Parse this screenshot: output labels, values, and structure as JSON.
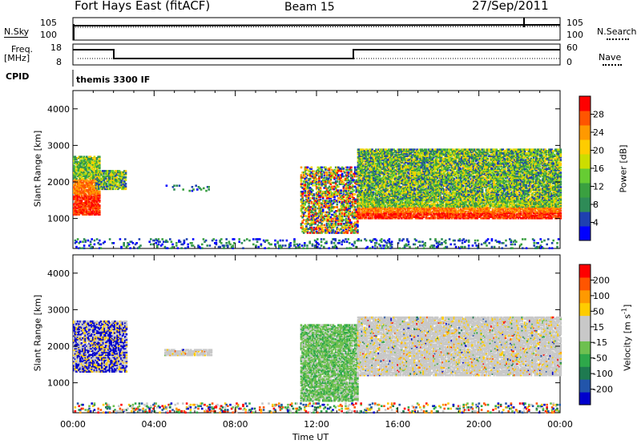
{
  "header": {
    "station": "Fort Hays East (fitACF)",
    "beam": "Beam 15",
    "date": "27/Sep/2011"
  },
  "top_panels": {
    "nsky_label": "N.Sky",
    "nsearch_label": "N.Search",
    "freq_label_1": "Freq.",
    "freq_label_2": "[MHz]",
    "nave_label": "Nave",
    "cpid_label": "CPID",
    "cpid_value": "themis 3300 IF",
    "noise_left_ticks": [
      "10^5",
      "10^0"
    ],
    "noise_right_ticks": [
      "10^5",
      "10^0"
    ],
    "freq_ticks": [
      "18",
      "8"
    ],
    "nave_ticks": [
      "60",
      "0"
    ]
  },
  "colorbars": {
    "power": {
      "label": "Power [dB]",
      "ticks": [
        "28",
        "24",
        "20",
        "16",
        "12",
        "8",
        "4"
      ],
      "colors": [
        "#0000ff",
        "#1e40b0",
        "#2e8b57",
        "#3aa040",
        "#66cc33",
        "#ccdd00",
        "#ffcc00",
        "#ff9900",
        "#ff5500",
        "#ff0000"
      ]
    },
    "velocity": {
      "label": "Velocity [m s",
      "label_exp": "-1",
      "label_end": "]",
      "ticks": [
        "200",
        "100",
        "50",
        "15",
        "-15",
        "-50",
        "-100",
        "-200"
      ],
      "colors": [
        "#0000cc",
        "#2255aa",
        "#1e7a50",
        "#2ea84a",
        "#6ec050",
        "#c8c8c8",
        "#c8c8c8",
        "#ffcc00",
        "#ff9900",
        "#ff5500",
        "#ff0000"
      ]
    }
  },
  "chart_data": [
    {
      "type": "heatmap",
      "title": "",
      "ylabel": "Slant Range [km]",
      "quantity": "Power [dB]",
      "ylim": [
        180,
        4500
      ],
      "yticks": [
        1000,
        2000,
        3000,
        4000
      ],
      "xlim": [
        0,
        24
      ],
      "scatter_regions": [
        {
          "t0": 0.0,
          "t1": 1.3,
          "r0": 1100,
          "r1": 2700,
          "level": "high"
        },
        {
          "t0": 1.1,
          "t1": 2.6,
          "r0": 1800,
          "r1": 2300,
          "level": "mid"
        },
        {
          "t0": 4.5,
          "t1": 6.8,
          "r0": 1750,
          "r1": 1900,
          "level": "low"
        },
        {
          "t0": 11.2,
          "t1": 14.0,
          "r0": 600,
          "r1": 2400,
          "level": "mixed"
        },
        {
          "t0": 14.0,
          "t1": 24.0,
          "r0": 1000,
          "r1": 1500,
          "level": "high"
        },
        {
          "t0": 14.0,
          "t1": 24.0,
          "r0": 1500,
          "r1": 2000,
          "level": "mid"
        },
        {
          "t0": 14.0,
          "t1": 24.0,
          "r0": 2000,
          "r1": 2900,
          "level": "mid"
        },
        {
          "t0": 0.0,
          "t1": 24.0,
          "r0": 180,
          "r1": 450,
          "level": "low"
        }
      ]
    },
    {
      "type": "heatmap",
      "title": "",
      "ylabel": "Slant Range [km]",
      "quantity": "Velocity [m s-1]",
      "ylim": [
        180,
        4500
      ],
      "yticks": [
        1000,
        2000,
        3000,
        4000
      ],
      "xlim": [
        0,
        24
      ],
      "xlabel": "Time UT",
      "xticks": [
        "00:00",
        "04:00",
        "08:00",
        "12:00",
        "16:00",
        "20:00",
        "00:00"
      ],
      "scatter_regions": [
        {
          "t0": 0.0,
          "t1": 2.6,
          "r0": 1300,
          "r1": 2700,
          "level": "negative-blue"
        },
        {
          "t0": 4.5,
          "t1": 6.8,
          "r0": 1750,
          "r1": 1900,
          "level": "ground"
        },
        {
          "t0": 11.2,
          "t1": 14.0,
          "r0": 500,
          "r1": 2600,
          "level": "green-ground"
        },
        {
          "t0": 14.0,
          "t1": 24.0,
          "r0": 1200,
          "r1": 2800,
          "level": "ground"
        },
        {
          "t0": 0.0,
          "t1": 24.0,
          "r0": 180,
          "r1": 450,
          "level": "mixed"
        }
      ]
    }
  ]
}
